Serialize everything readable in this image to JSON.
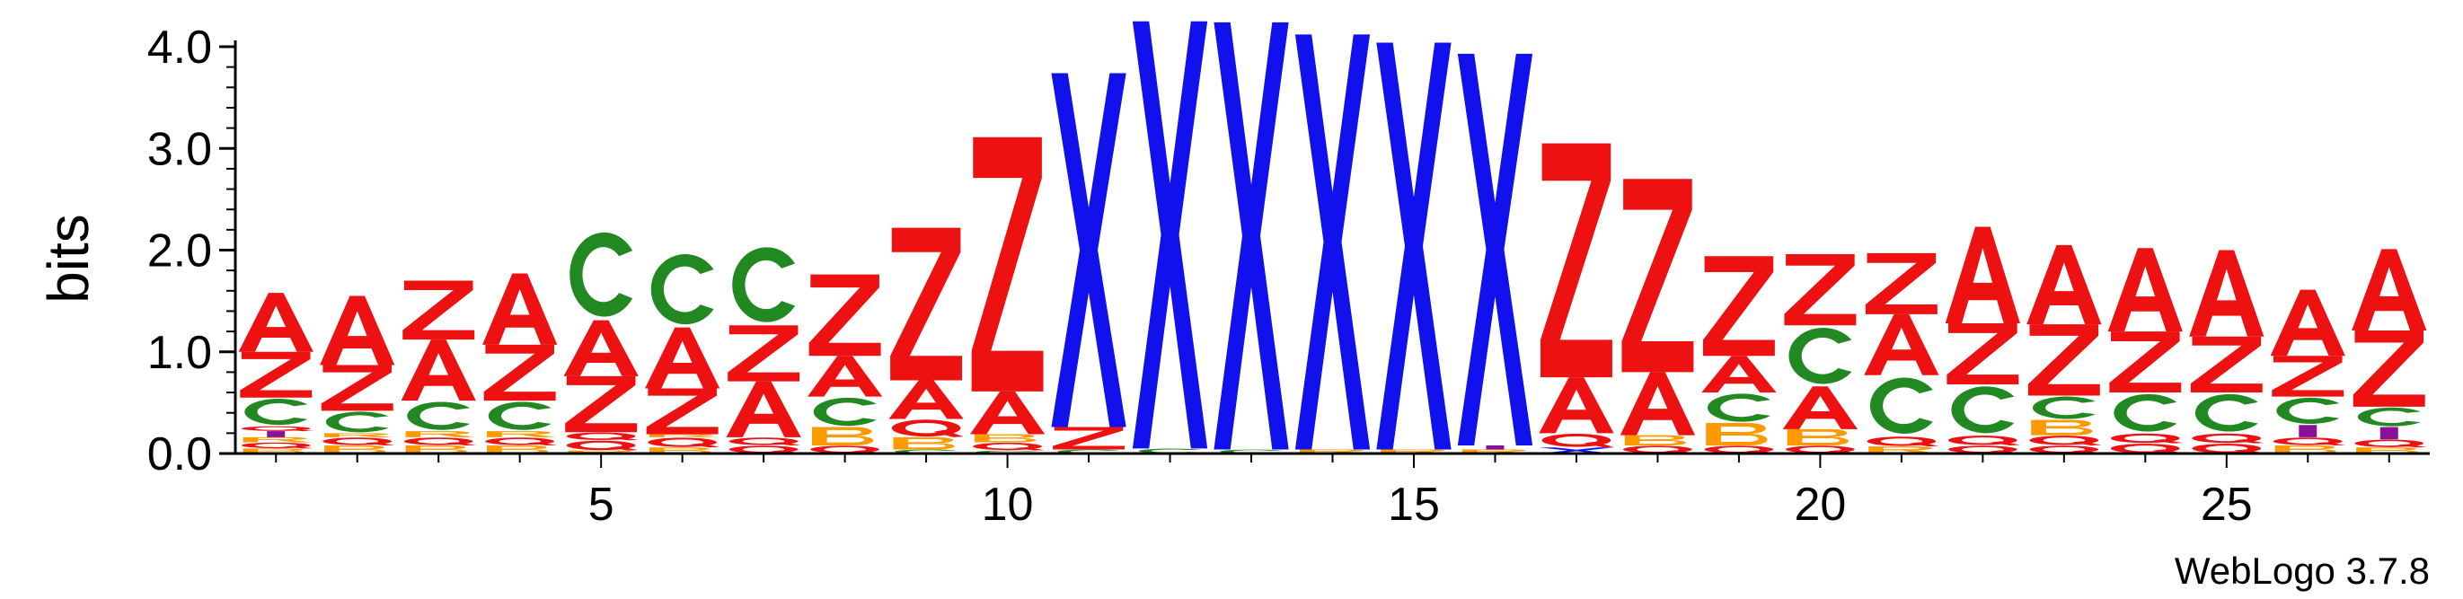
{
  "chart_data": {
    "type": "sequence-logo",
    "ylabel": "bits",
    "ylim": [
      0,
      4.0
    ],
    "yticks": [
      {
        "value": 0.0,
        "label": "0.0"
      },
      {
        "value": 1.0,
        "label": "1.0"
      },
      {
        "value": 2.0,
        "label": "2.0"
      },
      {
        "value": 3.0,
        "label": "3.0"
      },
      {
        "value": 4.0,
        "label": "4.0"
      }
    ],
    "xlim": [
      0.5,
      27.5
    ],
    "xticks": [
      {
        "value": 5,
        "label": "5"
      },
      {
        "value": 10,
        "label": "10"
      },
      {
        "value": 15,
        "label": "15"
      },
      {
        "value": 20,
        "label": "20"
      },
      {
        "value": 25,
        "label": "25"
      }
    ],
    "credit": "WebLogo 3.7.8",
    "colors": {
      "A": "#ee1111",
      "Z": "#ee1111",
      "Q": "#ee1111",
      "C": "#228822",
      "X": "#1111ee",
      "B": "#ff9900",
      "R": "#ff9900",
      "M": "#881199"
    },
    "positions": [
      {
        "pos": 1,
        "stack": [
          [
            "B",
            0.05
          ],
          [
            "Q",
            0.06
          ],
          [
            "R",
            0.05
          ],
          [
            "M",
            0.06
          ],
          [
            "Q",
            0.05
          ],
          [
            "C",
            0.28
          ],
          [
            "Z",
            0.45
          ],
          [
            "A",
            0.58
          ]
        ]
      },
      {
        "pos": 2,
        "stack": [
          [
            "B",
            0.08
          ],
          [
            "Q",
            0.08
          ],
          [
            "R",
            0.04
          ],
          [
            "C",
            0.22
          ],
          [
            "Z",
            0.45
          ],
          [
            "A",
            0.68
          ]
        ]
      },
      {
        "pos": 3,
        "stack": [
          [
            "B",
            0.08
          ],
          [
            "Q",
            0.08
          ],
          [
            "R",
            0.06
          ],
          [
            "C",
            0.3
          ],
          [
            "A",
            0.6
          ],
          [
            "Z",
            0.58
          ]
        ]
      },
      {
        "pos": 4,
        "stack": [
          [
            "B",
            0.08
          ],
          [
            "Q",
            0.08
          ],
          [
            "R",
            0.06
          ],
          [
            "C",
            0.3
          ],
          [
            "Z",
            0.55
          ],
          [
            "A",
            0.7
          ]
        ]
      },
      {
        "pos": 5,
        "stack": [
          [
            "R",
            0.03
          ],
          [
            "Q",
            0.1
          ],
          [
            "Q",
            0.08
          ],
          [
            "Z",
            0.55
          ],
          [
            "A",
            0.55
          ],
          [
            "C",
            0.9
          ]
        ]
      },
      {
        "pos": 6,
        "stack": [
          [
            "B",
            0.06
          ],
          [
            "Q",
            0.1
          ],
          [
            "R",
            0.03
          ],
          [
            "Z",
            0.45
          ],
          [
            "A",
            0.6
          ],
          [
            "C",
            0.75
          ]
        ]
      },
      {
        "pos": 7,
        "stack": [
          [
            "Q",
            0.08
          ],
          [
            "Q",
            0.08
          ],
          [
            "A",
            0.55
          ],
          [
            "Z",
            0.55
          ],
          [
            "C",
            0.8
          ]
        ]
      },
      {
        "pos": 8,
        "stack": [
          [
            "Q",
            0.08
          ],
          [
            "B",
            0.18
          ],
          [
            "C",
            0.3
          ],
          [
            "A",
            0.4
          ],
          [
            "Z",
            0.8
          ]
        ]
      },
      {
        "pos": 9,
        "stack": [
          [
            "C",
            0.04
          ],
          [
            "B",
            0.12
          ],
          [
            "Q",
            0.18
          ],
          [
            "A",
            0.38
          ],
          [
            "Z",
            1.5
          ]
        ]
      },
      {
        "pos": 10,
        "stack": [
          [
            "C",
            0.03
          ],
          [
            "Q",
            0.08
          ],
          [
            "B",
            0.08
          ],
          [
            "A",
            0.42
          ],
          [
            "Z",
            2.5
          ]
        ]
      },
      {
        "pos": 11,
        "stack": [
          [
            "C",
            0.04
          ],
          [
            "Z",
            0.22
          ],
          [
            "X",
            3.48
          ]
        ]
      },
      {
        "pos": 12,
        "stack": [
          [
            "C",
            0.05
          ],
          [
            "X",
            4.2
          ]
        ]
      },
      {
        "pos": 13,
        "stack": [
          [
            "C",
            0.04
          ],
          [
            "X",
            4.2
          ]
        ]
      },
      {
        "pos": 14,
        "stack": [
          [
            "R",
            0.04
          ],
          [
            "X",
            4.08
          ]
        ]
      },
      {
        "pos": 15,
        "stack": [
          [
            "R",
            0.04
          ],
          [
            "X",
            4.0
          ]
        ]
      },
      {
        "pos": 16,
        "stack": [
          [
            "R",
            0.04
          ],
          [
            "M",
            0.04
          ],
          [
            "X",
            3.85
          ]
        ]
      },
      {
        "pos": 17,
        "stack": [
          [
            "X",
            0.06
          ],
          [
            "Q",
            0.14
          ],
          [
            "A",
            0.55
          ],
          [
            "Z",
            2.3
          ]
        ]
      },
      {
        "pos": 18,
        "stack": [
          [
            "Q",
            0.08
          ],
          [
            "B",
            0.1
          ],
          [
            "A",
            0.62
          ],
          [
            "Z",
            1.9
          ]
        ]
      },
      {
        "pos": 19,
        "stack": [
          [
            "Q",
            0.08
          ],
          [
            "B",
            0.22
          ],
          [
            "C",
            0.3
          ],
          [
            "A",
            0.36
          ],
          [
            "Z",
            0.98
          ]
        ]
      },
      {
        "pos": 20,
        "stack": [
          [
            "Q",
            0.08
          ],
          [
            "B",
            0.16
          ],
          [
            "A",
            0.42
          ],
          [
            "C",
            0.6
          ],
          [
            "Z",
            0.7
          ]
        ]
      },
      {
        "pos": 21,
        "stack": [
          [
            "R",
            0.07
          ],
          [
            "Q",
            0.1
          ],
          [
            "C",
            0.6
          ],
          [
            "A",
            0.6
          ],
          [
            "Z",
            0.6
          ]
        ]
      },
      {
        "pos": 22,
        "stack": [
          [
            "Q",
            0.08
          ],
          [
            "Q",
            0.1
          ],
          [
            "C",
            0.5
          ],
          [
            "Z",
            0.6
          ],
          [
            "A",
            0.95
          ]
        ]
      },
      {
        "pos": 23,
        "stack": [
          [
            "Q",
            0.08
          ],
          [
            "Q",
            0.1
          ],
          [
            "B",
            0.15
          ],
          [
            "C",
            0.24
          ],
          [
            "Z",
            0.7
          ],
          [
            "A",
            0.78
          ]
        ]
      },
      {
        "pos": 24,
        "stack": [
          [
            "Q",
            0.1
          ],
          [
            "Q",
            0.1
          ],
          [
            "C",
            0.4
          ],
          [
            "Z",
            0.6
          ],
          [
            "A",
            0.82
          ]
        ]
      },
      {
        "pos": 25,
        "stack": [
          [
            "Q",
            0.1
          ],
          [
            "Q",
            0.1
          ],
          [
            "C",
            0.4
          ],
          [
            "Z",
            0.55
          ],
          [
            "A",
            0.85
          ]
        ]
      },
      {
        "pos": 26,
        "stack": [
          [
            "B",
            0.08
          ],
          [
            "Q",
            0.08
          ],
          [
            "M",
            0.12
          ],
          [
            "C",
            0.28
          ],
          [
            "Z",
            0.4
          ],
          [
            "A",
            0.65
          ]
        ]
      },
      {
        "pos": 27,
        "stack": [
          [
            "B",
            0.06
          ],
          [
            "Q",
            0.08
          ],
          [
            "M",
            0.12
          ],
          [
            "C",
            0.2
          ],
          [
            "Z",
            0.75
          ],
          [
            "A",
            0.8
          ]
        ]
      }
    ]
  }
}
